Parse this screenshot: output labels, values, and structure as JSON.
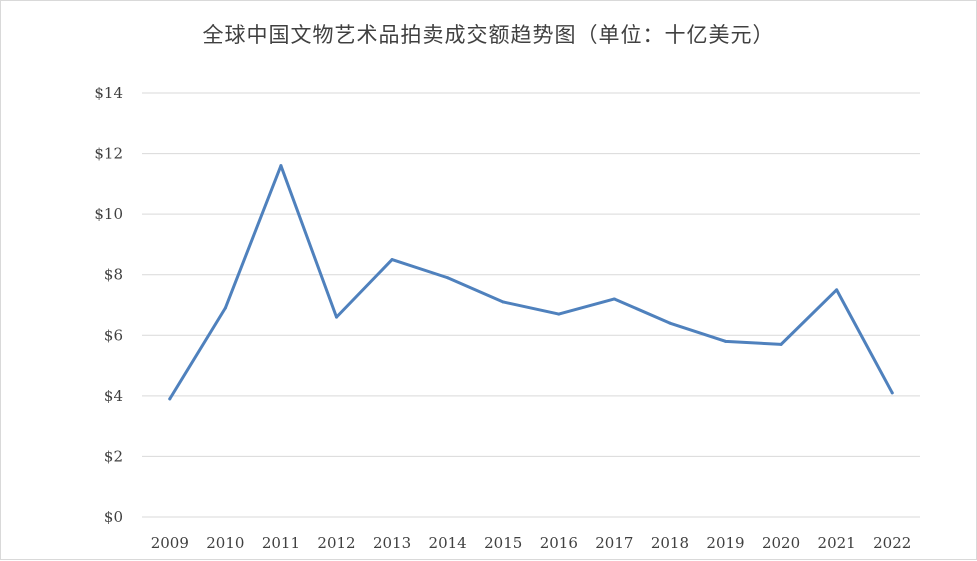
{
  "chart_data": {
    "type": "line",
    "title": "全球中国文物艺术品拍卖成交额趋势图（单位：十亿美元）",
    "xlabel": "",
    "ylabel": "",
    "categories": [
      "2009",
      "2010",
      "2011",
      "2012",
      "2013",
      "2014",
      "2015",
      "2016",
      "2017",
      "2018",
      "2019",
      "2020",
      "2021",
      "2022"
    ],
    "series": [
      {
        "values": [
          3.9,
          6.9,
          11.6,
          6.6,
          8.5,
          7.9,
          7.1,
          6.7,
          7.2,
          6.4,
          5.8,
          5.7,
          7.5,
          4.1
        ],
        "color": "#4f81bd"
      }
    ],
    "ylim": [
      0,
      14
    ],
    "yticks": [
      "$0",
      "$2",
      "$4",
      "$6",
      "$8",
      "$10",
      "$12",
      "$14"
    ],
    "grid": true,
    "legend": "none"
  }
}
